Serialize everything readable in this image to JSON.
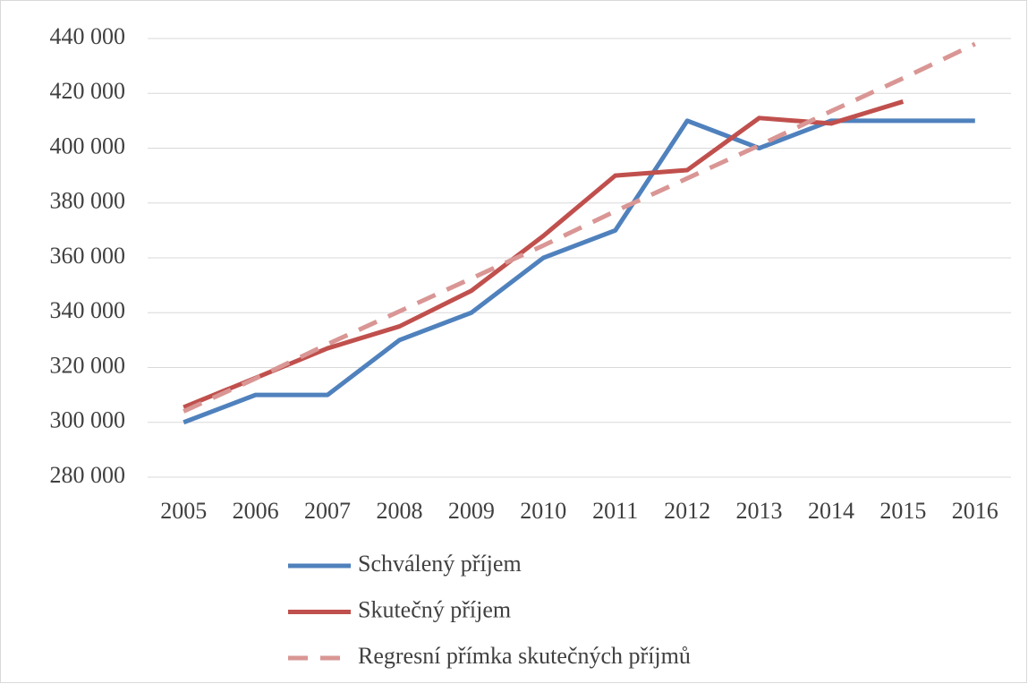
{
  "chart_data": {
    "type": "line",
    "categories": [
      "2005",
      "2006",
      "2007",
      "2008",
      "2009",
      "2010",
      "2011",
      "2012",
      "2013",
      "2014",
      "2015",
      "2016"
    ],
    "series": [
      {
        "name": "Schválený příjem",
        "color": "#4f81bd",
        "style": "solid",
        "values": [
          300000,
          310000,
          310000,
          330000,
          340000,
          360000,
          370000,
          410000,
          400000,
          410000,
          410000,
          410000
        ]
      },
      {
        "name": "Skutečný příjem",
        "color": "#c0504d",
        "style": "solid",
        "values": [
          305500,
          316200,
          327000,
          335000,
          348000,
          368000,
          390000,
          392000,
          411000,
          409000,
          417000,
          null
        ]
      },
      {
        "name": "Regresní přímka skutečných příjmů",
        "color": "#d99694",
        "style": "dashed",
        "values": [
          304000,
          316000,
          328500,
          340500,
          352500,
          364500,
          377000,
          389000,
          401000,
          413500,
          425500,
          438000
        ]
      }
    ],
    "ylim": [
      280000,
      440000
    ],
    "yticks": [
      {
        "value": 280000,
        "label": "280 000"
      },
      {
        "value": 300000,
        "label": "300 000"
      },
      {
        "value": 320000,
        "label": "320 000"
      },
      {
        "value": 340000,
        "label": "340 000"
      },
      {
        "value": 360000,
        "label": "360 000"
      },
      {
        "value": 380000,
        "label": "380 000"
      },
      {
        "value": 400000,
        "label": "400 000"
      },
      {
        "value": 420000,
        "label": "420 000"
      },
      {
        "value": 440000,
        "label": "440 000"
      }
    ],
    "grid": true,
    "legend": "bottom"
  }
}
